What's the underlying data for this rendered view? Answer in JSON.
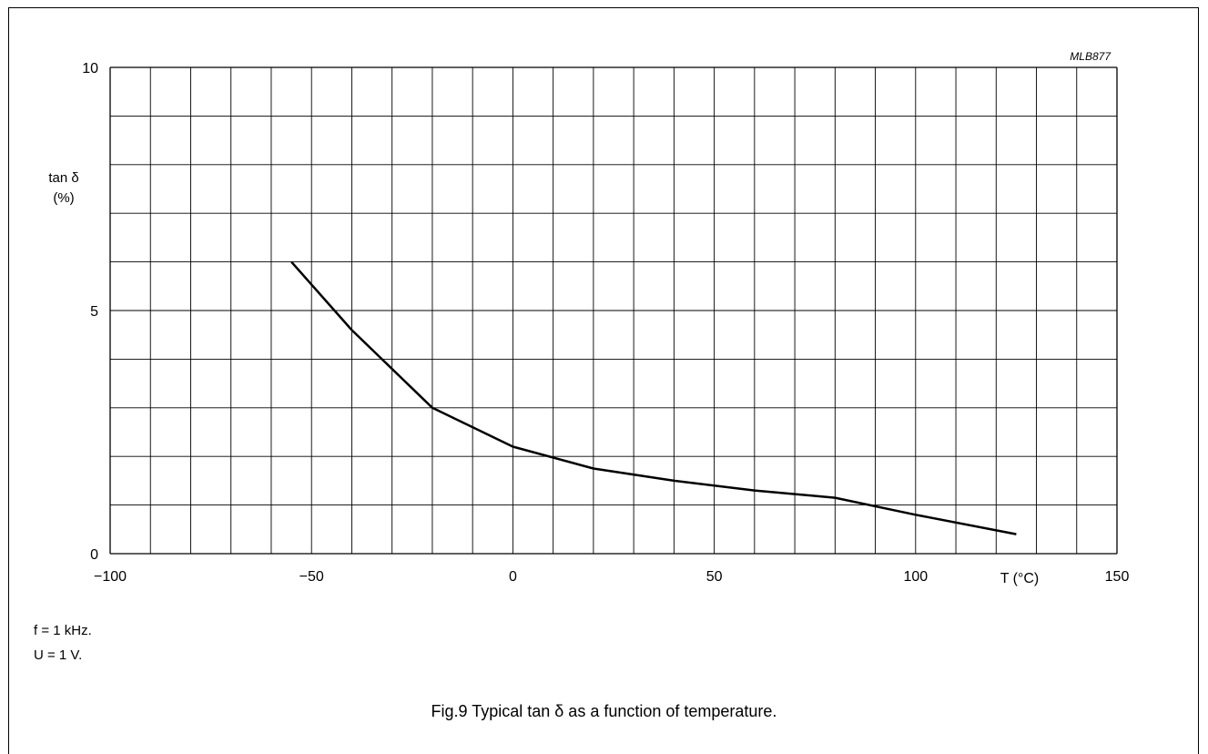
{
  "chart_data": {
    "type": "line",
    "code_label": "MLB877",
    "ylabel_line1": "tan  δ",
    "ylabel_line2": "(%)",
    "xlabel": "T  (°C)",
    "xlim": [
      -100,
      150
    ],
    "ylim": [
      0,
      10
    ],
    "x_ticks": [
      {
        "value": -100,
        "label": "−100"
      },
      {
        "value": -50,
        "label": "−50"
      },
      {
        "value": 0,
        "label": "0"
      },
      {
        "value": 50,
        "label": "50"
      },
      {
        "value": 100,
        "label": "100"
      },
      {
        "value": 150,
        "label": "150"
      }
    ],
    "y_ticks": [
      {
        "value": 0,
        "label": "0"
      },
      {
        "value": 5,
        "label": "5"
      },
      {
        "value": 10,
        "label": "10"
      }
    ],
    "x_grid_step": 10,
    "y_grid_step": 1,
    "grid": true,
    "series": [
      {
        "x": [
          -55,
          -40,
          -20,
          0,
          20,
          40,
          60,
          80,
          100,
          125
        ],
        "y": [
          6.0,
          4.6,
          3.0,
          2.2,
          1.75,
          1.5,
          1.3,
          1.15,
          0.8,
          0.4
        ]
      }
    ]
  },
  "conditions": [
    "f = 1 kHz.",
    "U = 1 V."
  ],
  "caption": "Fig.9  Typical tan δ as a function of temperature.",
  "colors": {
    "line": "#000000",
    "grid": "#000000"
  }
}
